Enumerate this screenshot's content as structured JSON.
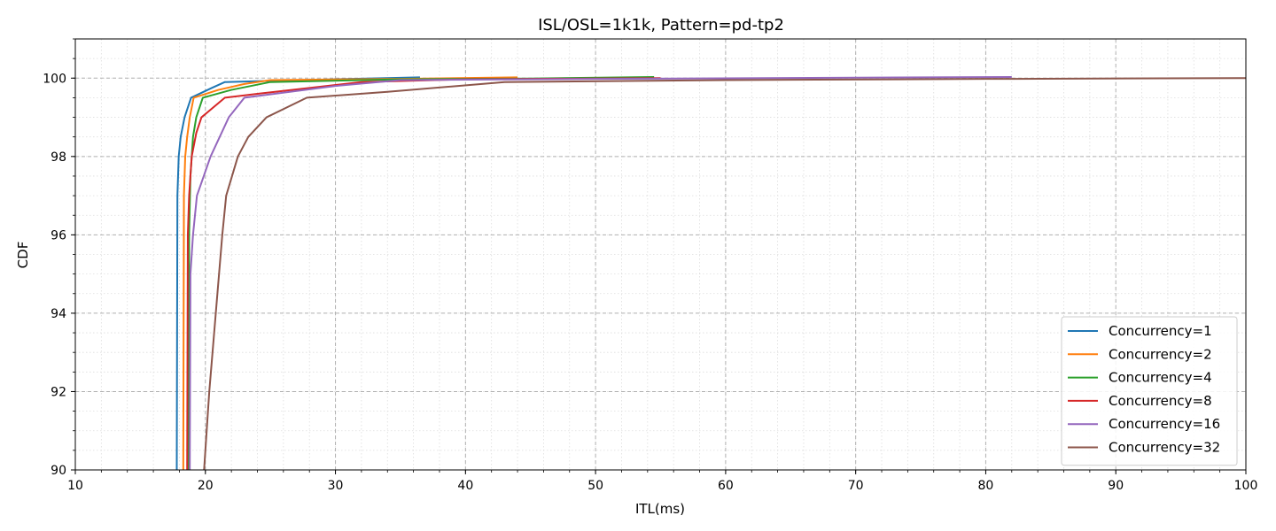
{
  "chart_data": {
    "type": "line",
    "title": "ISL/OSL=1k1k, Pattern=pd-tp2",
    "xlabel": "ITL(ms)",
    "ylabel": "CDF",
    "xlim": [
      10,
      100
    ],
    "ylim": [
      90,
      101
    ],
    "xticks": [
      10,
      20,
      30,
      40,
      50,
      60,
      70,
      80,
      90,
      100
    ],
    "yticks": [
      90,
      92,
      94,
      96,
      98,
      100
    ],
    "grid": true,
    "minor_grid": true,
    "legend_position": "bottom-right",
    "series": [
      {
        "name": "Concurrency=1",
        "color": "#1f77b4",
        "points": [
          [
            17.8,
            90
          ],
          [
            17.85,
            97
          ],
          [
            17.95,
            98
          ],
          [
            18.1,
            98.5
          ],
          [
            18.4,
            99
          ],
          [
            18.9,
            99.5
          ],
          [
            20.5,
            99.75
          ],
          [
            21.5,
            99.9
          ],
          [
            24,
            99.92
          ],
          [
            30,
            99.97
          ],
          [
            36.5,
            100.02
          ]
        ]
      },
      {
        "name": "Concurrency=2",
        "color": "#ff7f0e",
        "points": [
          [
            18.3,
            90
          ],
          [
            18.35,
            97
          ],
          [
            18.45,
            98
          ],
          [
            18.6,
            98.5
          ],
          [
            18.8,
            99
          ],
          [
            19.1,
            99.5
          ],
          [
            21,
            99.7
          ],
          [
            23,
            99.85
          ],
          [
            25,
            99.95
          ],
          [
            35,
            99.98
          ],
          [
            44,
            100.02
          ]
        ]
      },
      {
        "name": "Concurrency=4",
        "color": "#2ca02c",
        "points": [
          [
            18.7,
            90
          ],
          [
            18.75,
            96
          ],
          [
            18.85,
            97.5
          ],
          [
            19.05,
            98.5
          ],
          [
            19.3,
            99
          ],
          [
            19.8,
            99.5
          ],
          [
            22,
            99.7
          ],
          [
            25,
            99.9
          ],
          [
            35,
            99.97
          ],
          [
            45,
            99.99
          ],
          [
            54.5,
            100.03
          ]
        ]
      },
      {
        "name": "Concurrency=8",
        "color": "#d62728",
        "points": [
          [
            18.6,
            90
          ],
          [
            18.65,
            96
          ],
          [
            18.75,
            97
          ],
          [
            18.95,
            98
          ],
          [
            19.3,
            98.6
          ],
          [
            19.7,
            99
          ],
          [
            21.5,
            99.5
          ],
          [
            24,
            99.6
          ],
          [
            28,
            99.75
          ],
          [
            32,
            99.9
          ],
          [
            40,
            99.97
          ],
          [
            55,
            100
          ]
        ]
      },
      {
        "name": "Concurrency=16",
        "color": "#9467bd",
        "points": [
          [
            18.8,
            90
          ],
          [
            18.85,
            95
          ],
          [
            19.05,
            96
          ],
          [
            19.35,
            97
          ],
          [
            20.4,
            98
          ],
          [
            21.8,
            99
          ],
          [
            23,
            99.5
          ],
          [
            30,
            99.8
          ],
          [
            35,
            99.95
          ],
          [
            50,
            99.98
          ],
          [
            82,
            100.03
          ]
        ]
      },
      {
        "name": "Concurrency=32",
        "color": "#8c564b",
        "points": [
          [
            19.9,
            90
          ],
          [
            20.3,
            92
          ],
          [
            20.8,
            94
          ],
          [
            21.3,
            96
          ],
          [
            21.6,
            97
          ],
          [
            22.5,
            98
          ],
          [
            23.3,
            98.5
          ],
          [
            24.7,
            99
          ],
          [
            27.8,
            99.5
          ],
          [
            34,
            99.65
          ],
          [
            43,
            99.9
          ],
          [
            60,
            99.95
          ],
          [
            80,
            99.98
          ],
          [
            100,
            100
          ]
        ]
      }
    ]
  }
}
